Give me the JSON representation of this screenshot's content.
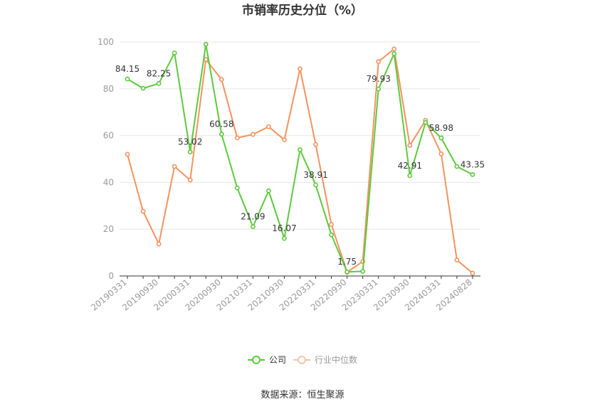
{
  "chart_data": {
    "type": "line",
    "title": "市销率历史分位（%）",
    "xlabel": "",
    "ylabel": "",
    "ylim": [
      0,
      100
    ],
    "yticks": [
      0,
      20,
      40,
      60,
      80,
      100
    ],
    "grid": true,
    "x": [
      "20190331",
      "20190630",
      "20190930",
      "20191231",
      "20200331",
      "20200630",
      "20200930",
      "20201231",
      "20210331",
      "20210630",
      "20210930",
      "20211231",
      "20220331",
      "20220630",
      "20220930",
      "20221231",
      "20230331",
      "20230630",
      "20230930",
      "20231231",
      "20240331",
      "20240630",
      "20240828"
    ],
    "x_tick_labels": [
      "20190331",
      "20190930",
      "20200331",
      "20200930",
      "20210331",
      "20210930",
      "20220331",
      "20220930",
      "20230331",
      "20230930",
      "20240331",
      "20240828"
    ],
    "series": [
      {
        "name": "公司",
        "color": "#5cc93d",
        "values": [
          84.15,
          80.2,
          82.25,
          95.3,
          53.02,
          99.0,
          60.58,
          37.6,
          21.09,
          36.4,
          16.07,
          54.0,
          38.91,
          17.6,
          1.75,
          2.0,
          79.93,
          95.0,
          42.91,
          65.6,
          58.98,
          46.8,
          43.35
        ],
        "labeled": [
          {
            "index": 0,
            "text": "84.15"
          },
          {
            "index": 2,
            "text": "82.25"
          },
          {
            "index": 4,
            "text": "53.02"
          },
          {
            "index": 6,
            "text": "60.58"
          },
          {
            "index": 8,
            "text": "21.09"
          },
          {
            "index": 10,
            "text": "16.07"
          },
          {
            "index": 12,
            "text": "38.91"
          },
          {
            "index": 14,
            "text": "1.75"
          },
          {
            "index": 16,
            "text": "79.93"
          },
          {
            "index": 18,
            "text": "42.91"
          },
          {
            "index": 20,
            "text": "58.98"
          },
          {
            "index": 22,
            "text": "43.35"
          }
        ]
      },
      {
        "name": "行业中位数",
        "color": "#f5925e",
        "values": [
          52.0,
          27.6,
          13.7,
          46.8,
          41.0,
          92.5,
          84.0,
          59.0,
          60.5,
          63.8,
          58.2,
          88.5,
          56.2,
          22.0,
          1.6,
          6.2,
          91.6,
          97.0,
          55.8,
          66.5,
          52.2,
          6.8,
          1.2
        ]
      }
    ],
    "legend_position": "bottom"
  },
  "source_text": "数据来源：恒生聚源"
}
